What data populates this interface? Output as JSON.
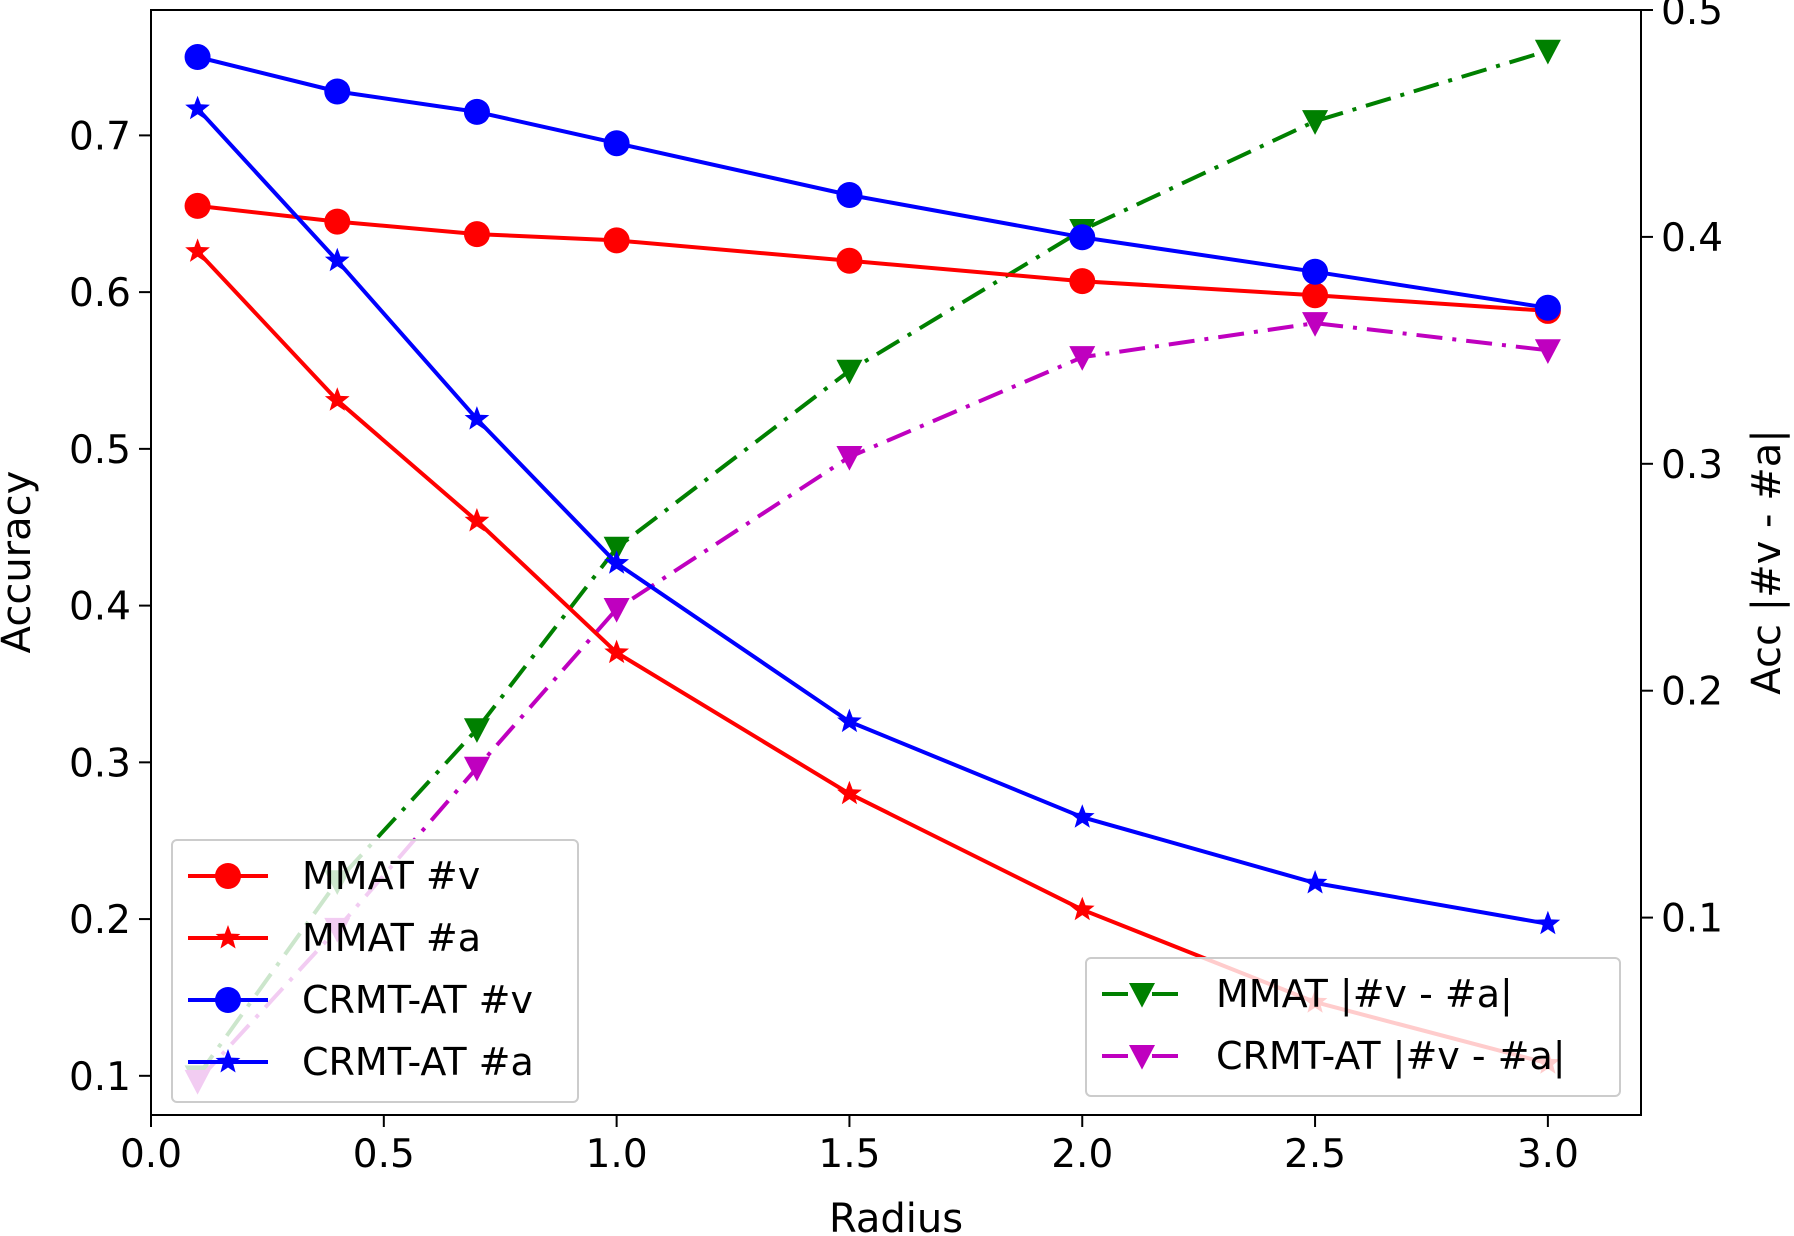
{
  "chart_data": {
    "type": "line",
    "x": [
      0.1,
      0.4,
      0.7,
      1.0,
      1.5,
      2.0,
      2.5,
      3.0
    ],
    "xlabel": "Radius",
    "ylabel_left": "Accuracy",
    "ylabel_right": "Acc |#v - #a|",
    "xlim": [
      0.0,
      3.2
    ],
    "ylim_left": [
      0.075,
      0.78
    ],
    "ylim_right": [
      0.013,
      0.5
    ],
    "xticks": [
      "0.0",
      "0.5",
      "1.0",
      "1.5",
      "2.0",
      "2.5",
      "3.0"
    ],
    "yticks_left": [
      "0.1",
      "0.2",
      "0.3",
      "0.4",
      "0.5",
      "0.6",
      "0.7"
    ],
    "yticks_right": [
      "0.1",
      "0.2",
      "0.3",
      "0.4",
      "0.5"
    ],
    "grid": false,
    "series": [
      {
        "name": "MMAT #v",
        "axis": "left",
        "color": "#ff0000",
        "marker": "circle",
        "linestyle": "solid",
        "values": [
          0.655,
          0.645,
          0.637,
          0.633,
          0.62,
          0.607,
          0.598,
          0.588
        ]
      },
      {
        "name": "MMAT #a",
        "axis": "left",
        "color": "#ff0000",
        "marker": "star",
        "linestyle": "solid",
        "values": [
          0.626,
          0.531,
          0.454,
          0.37,
          0.28,
          0.206,
          0.147,
          0.108
        ]
      },
      {
        "name": "CRMT-AT #v",
        "axis": "left",
        "color": "#0000ff",
        "marker": "circle",
        "linestyle": "solid",
        "values": [
          0.75,
          0.728,
          0.715,
          0.695,
          0.662,
          0.635,
          0.613,
          0.59
        ]
      },
      {
        "name": "CRMT-AT #a",
        "axis": "left",
        "color": "#0000ff",
        "marker": "star",
        "linestyle": "solid",
        "values": [
          0.717,
          0.62,
          0.519,
          0.427,
          0.326,
          0.265,
          0.223,
          0.197
        ]
      },
      {
        "name": "MMAT |#v - #a|",
        "axis": "right",
        "color": "#008000",
        "marker": "triangle-down",
        "linestyle": "dashdot",
        "values": [
          0.03,
          0.116,
          0.183,
          0.263,
          0.341,
          0.403,
          0.451,
          0.482
        ]
      },
      {
        "name": "CRMT-AT |#v - #a|",
        "axis": "right",
        "color": "#bf00bf",
        "marker": "triangle-down",
        "linestyle": "dashdot",
        "values": [
          0.028,
          0.095,
          0.166,
          0.236,
          0.303,
          0.347,
          0.362,
          0.35
        ]
      }
    ],
    "legends": [
      {
        "placement": "lower-left",
        "entries": [
          "MMAT #v",
          "MMAT #a",
          "CRMT-AT #v",
          "CRMT-AT #a"
        ]
      },
      {
        "placement": "lower-right",
        "entries": [
          "MMAT |#v - #a|",
          "CRMT-AT |#v - #a|"
        ]
      }
    ]
  }
}
